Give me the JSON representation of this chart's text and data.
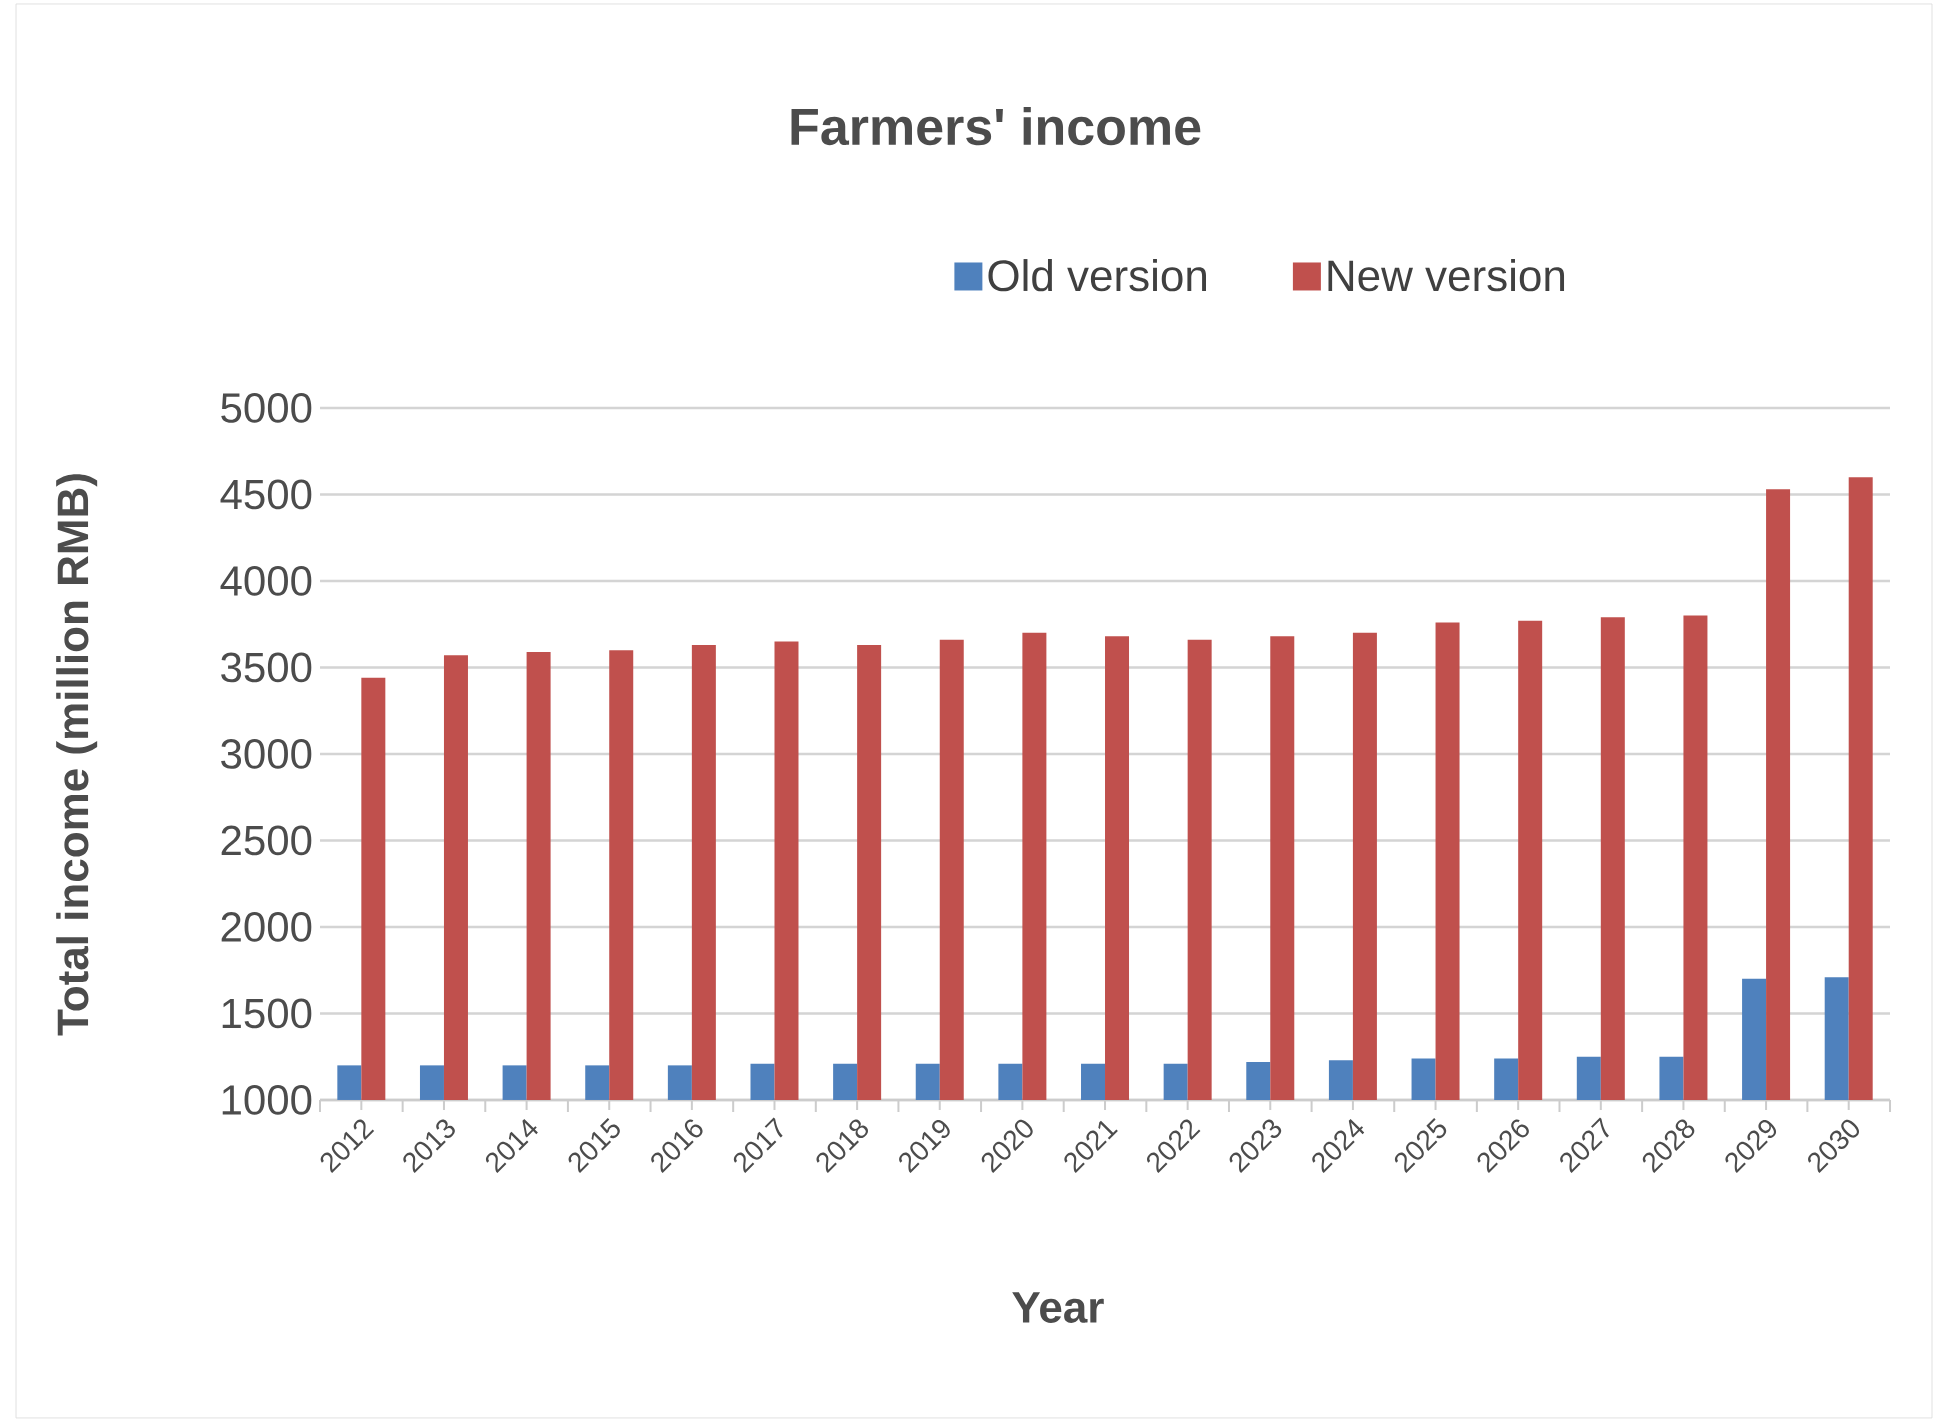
{
  "chart_data": {
    "type": "bar",
    "title": "Farmers' income",
    "xlabel": "Year",
    "ylabel": "Total income (million RMB)",
    "categories": [
      "2012",
      "2013",
      "2014",
      "2015",
      "2016",
      "2017",
      "2018",
      "2019",
      "2020",
      "2021",
      "2022",
      "2023",
      "2024",
      "2025",
      "2026",
      "2027",
      "2028",
      "2029",
      "2030"
    ],
    "series": [
      {
        "name": "Old version",
        "color": "#4f81bd",
        "values": [
          1200,
          1200,
          1200,
          1200,
          1200,
          1210,
          1210,
          1210,
          1210,
          1210,
          1210,
          1220,
          1230,
          1240,
          1240,
          1250,
          1250,
          1700,
          1710
        ]
      },
      {
        "name": "New version",
        "color": "#c0504d",
        "values": [
          3440,
          3570,
          3590,
          3600,
          3630,
          3650,
          3630,
          3660,
          3700,
          3680,
          3660,
          3680,
          3700,
          3760,
          3770,
          3790,
          3800,
          4530,
          4600
        ]
      }
    ],
    "ylim": [
      1000,
      5000
    ],
    "yticks": [
      1000,
      1500,
      2000,
      2500,
      3000,
      3500,
      4000,
      4500,
      5000
    ],
    "grid": "y",
    "legend": "top"
  }
}
